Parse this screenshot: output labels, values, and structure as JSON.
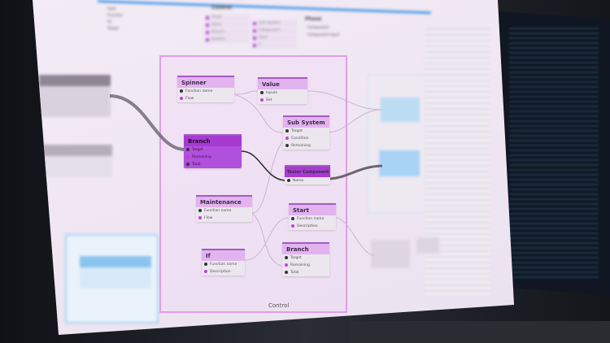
{
  "toolbar": {
    "control_title": "Control",
    "control_items": [
      "Timer",
      "Value",
      "Branch",
      "System",
      "Sub System",
      "Component",
      "Start",
      "If"
    ],
    "phase_title": "Phase",
    "phase_items": [
      "Component",
      "Component Input"
    ],
    "left_items": [
      "Host",
      "Function",
      "UI",
      "Target"
    ]
  },
  "group": {
    "label": "Control"
  },
  "nodes": [
    {
      "title": "Spinner",
      "ports": [
        "Function name",
        "Flow"
      ]
    },
    {
      "title": "Value",
      "ports": [
        "Inputs",
        "Set"
      ]
    },
    {
      "title": "Sub System",
      "ports": [
        "Target",
        "Condition",
        "Remaining"
      ]
    },
    {
      "title": "Branch",
      "ports": [
        "Target",
        "Remaining",
        "Total"
      ]
    },
    {
      "title": "Tester Component",
      "ports": [
        "Name"
      ]
    },
    {
      "title": "Maintenance",
      "ports": [
        "Function name",
        "Flow"
      ]
    },
    {
      "title": "Start",
      "ports": [
        "Function name",
        "Description"
      ]
    },
    {
      "title": "If",
      "ports": [
        "Function name",
        "Description"
      ]
    },
    {
      "title": "Branch",
      "ports": [
        "Target",
        "Remaining",
        "Total"
      ]
    }
  ],
  "colors": {
    "accent": "#a63bd0",
    "header": "#e3b3f0",
    "blue_accent": "#4a9be8"
  }
}
